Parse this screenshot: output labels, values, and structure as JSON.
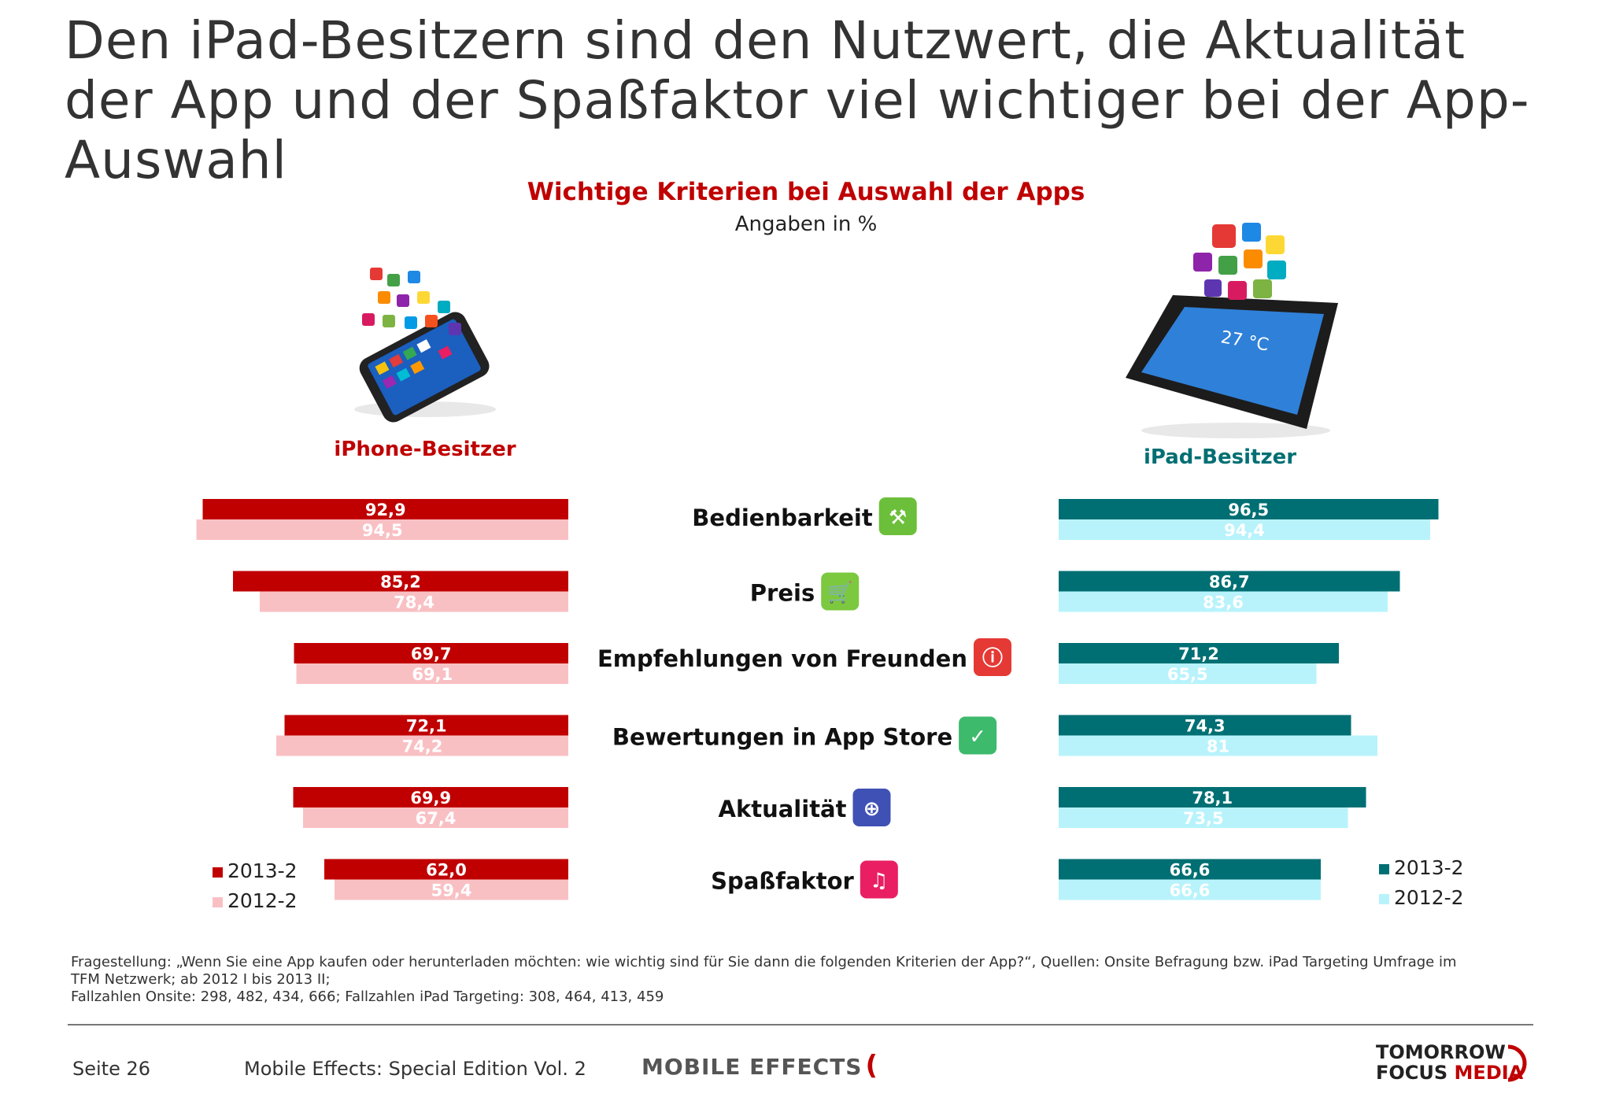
{
  "page_title": "Den iPad-Besitzern sind den Nutzwert, die Aktualität der App und der Spaßfaktor viel wichtiger bei der App-Auswahl",
  "chart_data": {
    "type": "bar",
    "title": "Wichtige Kriterien bei Auswahl der Apps",
    "subtitle": "Angaben in %",
    "categories": [
      "Bedienbarkeit",
      "Preis",
      "Empfehlungen von Freunden",
      "Bewertungen in App Store",
      "Aktualität",
      "Spaßfaktor"
    ],
    "category_icons": [
      "tools-icon",
      "cart-icon",
      "info-icon",
      "checkmark-icon",
      "globe-icon",
      "music-note-icon"
    ],
    "groups": [
      {
        "name": "iPhone-Besitzer",
        "direction": "left",
        "series": [
          {
            "name": "2013-2",
            "color": "#c00000",
            "values": [
              92.9,
              85.2,
              69.7,
              72.1,
              69.9,
              62.0
            ],
            "labels": [
              "92,9",
              "85,2",
              "69,7",
              "72,1",
              "69,9",
              "62,0"
            ]
          },
          {
            "name": "2012-2",
            "color": "#f9c0c4",
            "values": [
              94.5,
              78.4,
              69.1,
              74.2,
              67.4,
              59.4
            ],
            "labels": [
              "94,5",
              "78,4",
              "69,1",
              "74,2",
              "67,4",
              "59,4"
            ]
          }
        ]
      },
      {
        "name": "iPad-Besitzer",
        "direction": "right",
        "series": [
          {
            "name": "2013-2",
            "color": "#006f73",
            "values": [
              96.5,
              86.7,
              71.2,
              74.3,
              78.1,
              66.6
            ],
            "labels": [
              "96,5",
              "86,7",
              "71,2",
              "74,3",
              "78,1",
              "66,6"
            ]
          },
          {
            "name": "2012-2",
            "color": "#b8f3fb",
            "values": [
              94.4,
              83.6,
              65.5,
              81,
              73.5,
              66.6
            ],
            "labels": [
              "94,4",
              "83,6",
              "65,5",
              "81",
              "73,5",
              "66,6"
            ]
          }
        ]
      }
    ],
    "xlim": [
      0,
      100
    ],
    "grid": false,
    "legend_placement": "bottom-left and bottom-right"
  },
  "legend": {
    "iphone": [
      {
        "label": "2013-2",
        "color": "#c00000"
      },
      {
        "label": "2012-2",
        "color": "#f9c0c4"
      }
    ],
    "ipad": [
      {
        "label": "2013-2",
        "color": "#006f73"
      },
      {
        "label": "2012-2",
        "color": "#b8f3fb"
      }
    ]
  },
  "footnote": {
    "line1": "Fragestellung: „Wenn Sie eine App kaufen oder herunterladen möchten: wie wichtig sind für Sie dann die folgenden Kriterien der App?“, Quellen: Onsite Befragung bzw. iPad Targeting Umfrage im",
    "line2": "TFM Netzwerk; ab 2012 I bis 2013 II;",
    "line3": "Fallzahlen Onsite: 298, 482, 434, 666; Fallzahlen iPad Targeting: 308, 464, 413, 459"
  },
  "footer": {
    "page": "Seite 26",
    "publication": "Mobile Effects: Special Edition Vol. 2",
    "brand_logo": "MOBILE EFFECTS",
    "company_logo_line1": "TOMORROW",
    "company_logo_line2_a": "FOCUS ",
    "company_logo_line2_b": "MEDIA"
  }
}
